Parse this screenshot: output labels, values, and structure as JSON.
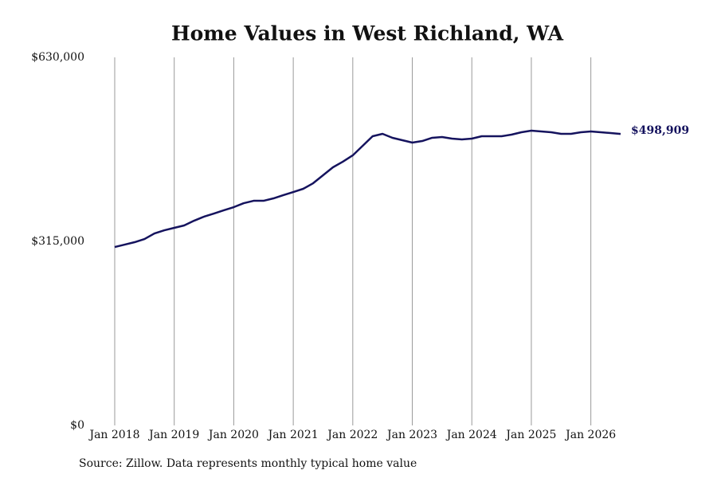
{
  "chart_data": {
    "type": "line",
    "title": "Home Values in West Richland, WA",
    "source": "Source: Zillow. Data represents monthly typical home value",
    "x": [
      "2018-01",
      "2018-03",
      "2018-05",
      "2018-07",
      "2018-09",
      "2018-11",
      "2019-01",
      "2019-03",
      "2019-05",
      "2019-07",
      "2019-09",
      "2019-11",
      "2020-01",
      "2020-03",
      "2020-05",
      "2020-07",
      "2020-09",
      "2020-11",
      "2021-01",
      "2021-03",
      "2021-05",
      "2021-07",
      "2021-09",
      "2021-11",
      "2022-01",
      "2022-03",
      "2022-05",
      "2022-07",
      "2022-09",
      "2022-11",
      "2023-01",
      "2023-03",
      "2023-05",
      "2023-07",
      "2023-09",
      "2023-11",
      "2024-01",
      "2024-03",
      "2024-05",
      "2024-07",
      "2024-09",
      "2024-11",
      "2025-01",
      "2025-03",
      "2025-05",
      "2025-07",
      "2025-09",
      "2025-11",
      "2026-01",
      "2026-03",
      "2026-05",
      "2026-07"
    ],
    "series": [
      {
        "name": "West Richland, WA",
        "color": "#15135e",
        "values": [
          305400,
          309500,
          313600,
          319000,
          328600,
          334000,
          338200,
          342300,
          350400,
          357300,
          362700,
          368200,
          373600,
          380400,
          384500,
          384500,
          388600,
          394100,
          399500,
          405000,
          414500,
          428200,
          441800,
          451400,
          462300,
          478600,
          495000,
          499100,
          492300,
          488200,
          484100,
          486800,
          492300,
          493600,
          490900,
          489500,
          490900,
          495000,
          495000,
          495000,
          497700,
          501800,
          504500,
          503200,
          501800,
          499100,
          499100,
          501800,
          503200,
          501800,
          500500,
          498909
        ],
        "value_labels": [
          null,
          null,
          null,
          null,
          null,
          null,
          null,
          null,
          null,
          null,
          null,
          null,
          null,
          null,
          null,
          null,
          null,
          null,
          null,
          null,
          null,
          null,
          null,
          null,
          null,
          null,
          null,
          null,
          null,
          null,
          null,
          null,
          null,
          null,
          null,
          null,
          null,
          null,
          null,
          null,
          null,
          null,
          null,
          null,
          null,
          null,
          null,
          null,
          null,
          null,
          null,
          "$498,909"
        ]
      }
    ],
    "xlim": [
      "2018-01",
      "2026-07"
    ],
    "xticks": [
      {
        "value": "2018-01",
        "label": "Jan 2018"
      },
      {
        "value": "2019-01",
        "label": "Jan 2019"
      },
      {
        "value": "2020-01",
        "label": "Jan 2020"
      },
      {
        "value": "2021-01",
        "label": "Jan 2021"
      },
      {
        "value": "2022-01",
        "label": "Jan 2022"
      },
      {
        "value": "2023-01",
        "label": "Jan 2023"
      },
      {
        "value": "2024-01",
        "label": "Jan 2024"
      },
      {
        "value": "2025-01",
        "label": "Jan 2025"
      },
      {
        "value": "2026-01",
        "label": "Jan 2026"
      }
    ],
    "ylim": [
      0,
      630000
    ],
    "yticks": [
      {
        "value": 0,
        "label": "$0"
      },
      {
        "value": 315000,
        "label": "$315,000"
      },
      {
        "value": 630000,
        "label": "$630,000"
      }
    ],
    "grid": "x"
  }
}
